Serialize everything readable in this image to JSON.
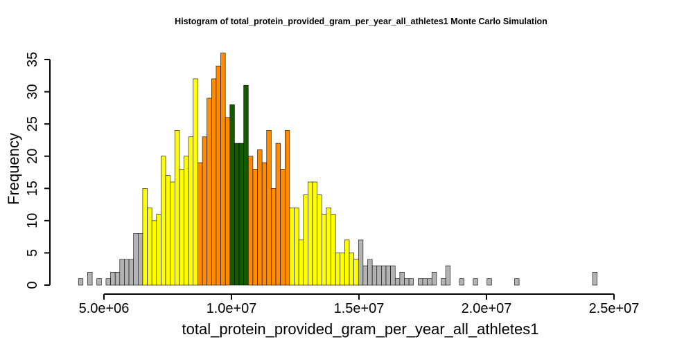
{
  "chart_data": {
    "type": "bar",
    "title": "Histogram of  total_protein_provided_gram_per_year_all_athletes1  Monte Carlo Simulation",
    "xlabel": "total_protein_provided_gram_per_year_all_athletes1",
    "ylabel": "Frequency",
    "bin_start": 4000000,
    "bin_width": 180000,
    "xlim": [
      5000000,
      25000000
    ],
    "ylim": [
      0,
      35
    ],
    "x_ticks": [
      5000000,
      10000000,
      15000000,
      20000000,
      25000000
    ],
    "x_tick_labels": [
      "5.0e+06",
      "1.0e+07",
      "1.5e+07",
      "2.0e+07",
      "2.5e+07"
    ],
    "y_ticks": [
      0,
      5,
      10,
      15,
      20,
      25,
      30,
      35
    ],
    "y_tick_labels": [
      "0",
      "5",
      "10",
      "15",
      "20",
      "25",
      "30",
      "35"
    ],
    "counts": [
      1,
      0,
      2,
      0,
      1,
      0,
      1,
      2,
      2,
      4,
      4,
      4,
      8,
      8,
      15,
      12,
      10,
      11,
      20,
      17,
      16,
      24,
      18,
      20,
      23,
      32,
      19,
      23,
      29,
      32,
      34,
      36,
      26,
      28,
      22,
      22,
      31,
      20,
      18,
      21,
      19,
      24,
      15,
      22,
      18,
      24,
      12,
      12,
      7,
      14,
      16,
      16,
      14,
      11,
      12,
      11,
      5,
      5,
      7,
      5,
      4,
      7,
      3,
      4,
      3,
      3,
      3,
      3,
      3,
      1,
      2,
      1,
      1,
      0,
      1,
      1,
      1,
      2,
      0,
      1,
      3,
      0,
      0,
      1,
      0,
      0,
      1,
      0,
      0,
      1,
      0,
      0,
      0,
      0,
      0,
      1,
      0,
      0,
      0,
      0,
      0,
      0,
      0,
      0,
      0,
      0,
      0,
      0,
      0,
      0,
      0,
      0,
      2
    ],
    "bin_colors": [
      "#b3b3b3",
      "#b3b3b3",
      "#b3b3b3",
      "#b3b3b3",
      "#b3b3b3",
      "#b3b3b3",
      "#b3b3b3",
      "#b3b3b3",
      "#b3b3b3",
      "#b3b3b3",
      "#b3b3b3",
      "#b3b3b3",
      "#b3b3b3",
      "#b3b3b3",
      "#ffff00",
      "#ffff00",
      "#ffff00",
      "#ffff00",
      "#ffff00",
      "#ffff00",
      "#ffff00",
      "#ffff00",
      "#ffff00",
      "#ffff00",
      "#ffff00",
      "#ffff00",
      "#ff8c00",
      "#ff8c00",
      "#ff8c00",
      "#ff8c00",
      "#ff8c00",
      "#ff8c00",
      "#ff8c00",
      "#145a00",
      "#145a00",
      "#145a00",
      "#145a00",
      "#ff8c00",
      "#ff8c00",
      "#ff8c00",
      "#ff8c00",
      "#ff8c00",
      "#ff8c00",
      "#ff8c00",
      "#ff8c00",
      "#ff8c00",
      "#ffff00",
      "#ffff00",
      "#ffff00",
      "#ffff00",
      "#ffff00",
      "#ffff00",
      "#ffff00",
      "#ffff00",
      "#ffff00",
      "#ffff00",
      "#ffff00",
      "#ffff00",
      "#ffff00",
      "#ffff00",
      "#ffff00",
      "#b3b3b3"
    ],
    "default_color": "#b3b3b3",
    "legend": "none",
    "grid": false
  }
}
